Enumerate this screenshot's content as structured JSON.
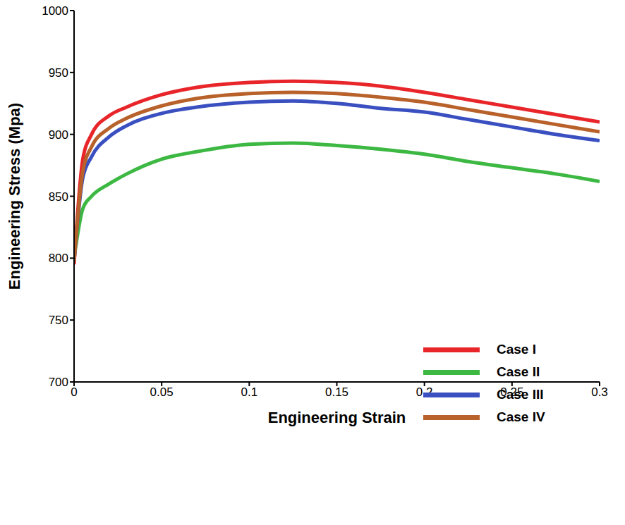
{
  "chart_data": {
    "type": "line",
    "x_label": "Engineering Strain",
    "y_label": "Engineering Stress (Mpa)",
    "x": [
      0,
      0.005,
      0.01,
      0.02,
      0.03,
      0.05,
      0.07,
      0.1,
      0.125,
      0.15,
      0.175,
      0.2,
      0.225,
      0.25,
      0.275,
      0.3
    ],
    "series": [
      {
        "name": "Case I",
        "color": "#e8262a",
        "values": [
          795,
          880,
          900,
          915,
          922,
          932,
          938,
          942,
          943,
          942,
          939,
          934,
          928,
          922,
          916,
          910
        ]
      },
      {
        "name": "Case II",
        "color": "#3cb843",
        "values": [
          800,
          840,
          850,
          860,
          868,
          880,
          886,
          892,
          893,
          891,
          888,
          884,
          878,
          873,
          868,
          862
        ]
      },
      {
        "name": "Case III",
        "color": "#3a4fc0",
        "values": [
          798,
          865,
          882,
          898,
          907,
          917,
          922,
          926,
          927,
          925,
          921,
          918,
          912,
          906,
          900,
          895
        ]
      },
      {
        "name": "Case IV",
        "color": "#b8612a",
        "values": [
          797,
          870,
          890,
          905,
          913,
          923,
          929,
          933,
          934,
          933,
          930,
          926,
          920,
          914,
          908,
          902
        ]
      }
    ],
    "xlim": [
      0,
      0.3
    ],
    "xticks": [
      0,
      0.05,
      0.1,
      0.15,
      0.2,
      0.25,
      0.3
    ],
    "ylim": [
      700,
      1000
    ],
    "yticks": [
      700,
      750,
      800,
      850,
      900,
      950,
      1000
    ],
    "grid": false,
    "legend": "lower right"
  }
}
